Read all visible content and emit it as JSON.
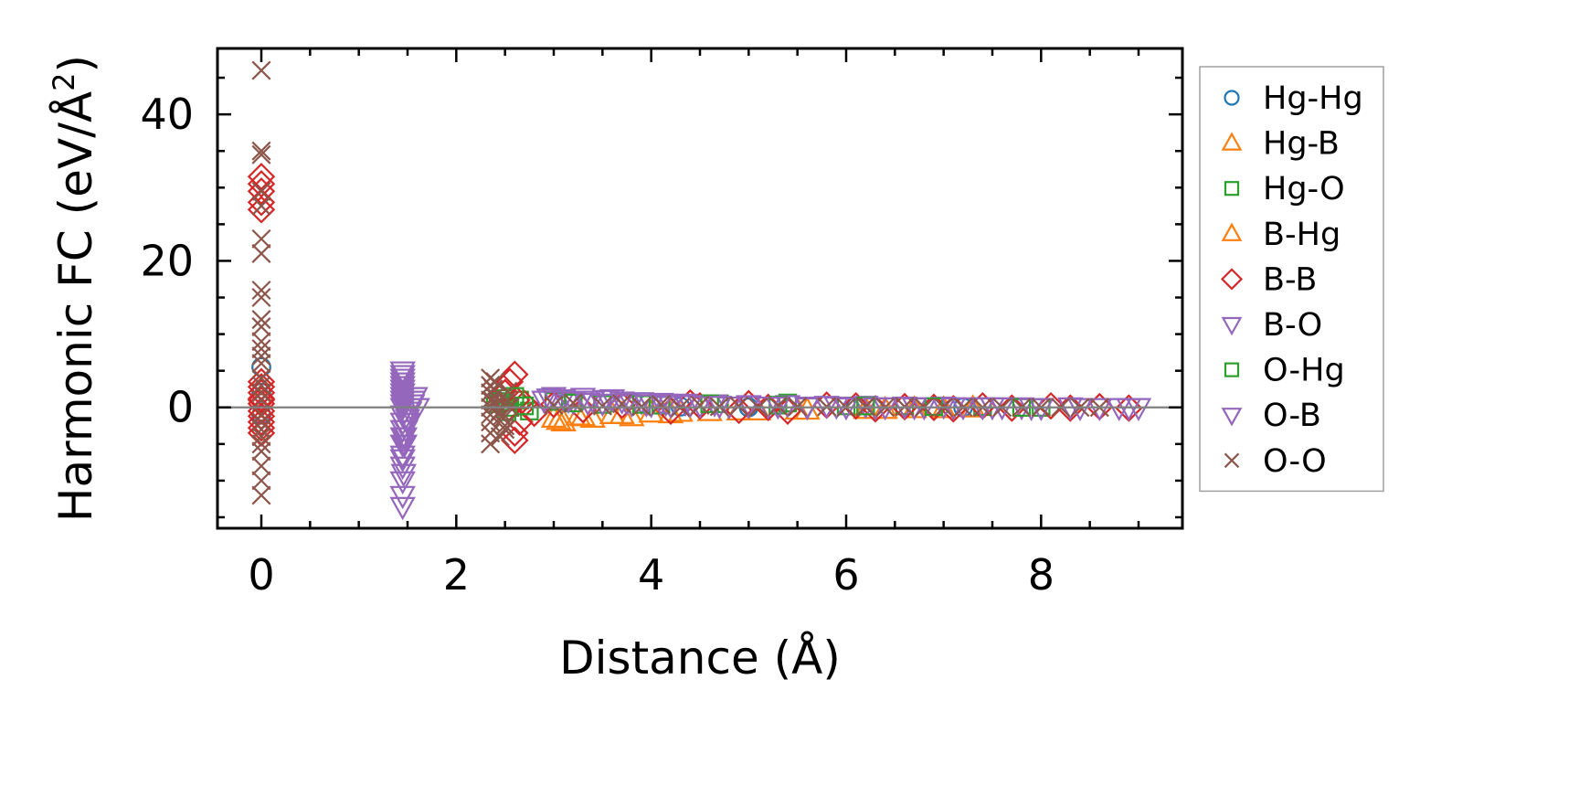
{
  "chart_data": {
    "type": "scatter",
    "title": "",
    "xlabel": "Distance (Å)",
    "ylabel": "Harmonic FC (eV/Å²)",
    "ylabel_parts": {
      "main": "Harmonic FC (eV/Å",
      "sup": "2",
      "close": ")"
    },
    "xlim": [
      -0.45,
      9.45
    ],
    "ylim": [
      -16.5,
      49
    ],
    "xticks": [
      0,
      2,
      4,
      6,
      8
    ],
    "xtick_labels": [
      "0",
      "2",
      "4",
      "6",
      "8"
    ],
    "yticks": [
      0,
      20,
      40
    ],
    "ytick_labels": [
      "0",
      "20",
      "40"
    ],
    "grid": false,
    "reference_line": 0,
    "legend_position": "outside-right",
    "series": [
      {
        "name": "Hg-Hg",
        "marker": "circle",
        "color": "#1f77b4",
        "x": [
          0,
          0,
          0,
          4.3,
          5.0,
          6.1,
          7.2
        ],
        "y": [
          5.5,
          2.0,
          -1.0,
          0.1,
          0.0,
          0.1,
          0.0
        ]
      },
      {
        "name": "Hg-B",
        "marker": "triangle-up",
        "color": "#ff7f0e",
        "x": [
          3.0,
          3.1,
          3.25,
          3.4,
          3.6,
          3.8,
          4.0,
          4.2,
          4.6,
          5.1,
          5.6,
          6.2,
          6.7,
          7.3
        ],
        "y": [
          -1.5,
          -2.0,
          -1.2,
          -1.5,
          -1.0,
          -1.3,
          -0.8,
          -0.9,
          -0.6,
          -0.5,
          -0.4,
          -0.3,
          -0.2,
          -0.1
        ]
      },
      {
        "name": "Hg-O",
        "marker": "square",
        "color": "#2ca02c",
        "x": [
          2.4,
          2.5,
          2.55,
          2.65,
          2.75,
          3.0,
          3.5,
          4.1,
          4.7,
          5.4,
          6.0,
          6.6,
          7.4,
          8.0
        ],
        "y": [
          0.5,
          1.2,
          0.0,
          1.0,
          -0.5,
          0.8,
          0.4,
          0.3,
          0.5,
          0.6,
          0.2,
          0.2,
          0.1,
          0.0
        ]
      },
      {
        "name": "B-Hg",
        "marker": "triangle-up",
        "color": "#ff7f0e",
        "x": [
          3.05,
          3.3,
          3.7,
          4.3,
          4.9,
          5.5,
          6.4,
          7.0
        ],
        "y": [
          -1.8,
          -1.3,
          -1.0,
          -0.7,
          -0.5,
          -0.4,
          -0.3,
          -0.2
        ]
      },
      {
        "name": "B-B",
        "marker": "diamond",
        "color": "#d62728",
        "x": [
          0,
          0,
          0,
          0,
          0,
          0,
          0,
          0,
          0,
          0,
          0,
          0,
          0,
          0,
          0,
          0,
          2.5,
          2.55,
          2.6,
          2.6,
          2.6,
          2.62,
          2.65,
          2.7,
          2.8,
          3.0,
          3.3,
          3.7,
          4.2,
          4.4,
          4.5,
          4.9,
          5.0,
          5.2,
          5.4,
          5.8,
          6.1,
          6.3,
          6.6,
          6.9,
          7.1,
          7.4,
          7.7,
          8.1,
          8.3,
          8.6,
          8.9
        ],
        "y": [
          27,
          28,
          29.5,
          30.5,
          31.5,
          3.5,
          2.8,
          2.0,
          1.2,
          0.5,
          -0.5,
          -1.2,
          -2.0,
          -2.8,
          -3.5,
          1.0,
          2.0,
          3.5,
          4.5,
          -3.5,
          -4.5,
          1.0,
          -2.0,
          0.5,
          -0.8,
          0.4,
          -0.3,
          0.3,
          -0.5,
          0.6,
          0.2,
          -0.4,
          0.5,
          0.0,
          -0.5,
          0.3,
          0.2,
          -0.2,
          0.1,
          0.0,
          -0.2,
          0.2,
          -0.1,
          0.2,
          -0.1,
          0.1,
          -0.1
        ]
      },
      {
        "name": "B-O",
        "marker": "triangle-down",
        "color": "#9467bd",
        "x": [
          1.45,
          1.45,
          1.45,
          1.45,
          1.45,
          1.45,
          1.45,
          1.45,
          1.45,
          1.45,
          1.45,
          1.45,
          1.45,
          1.45,
          1.45,
          1.45,
          1.45,
          1.45,
          1.45,
          1.45,
          1.45,
          1.47,
          1.48,
          1.5,
          1.52,
          1.55,
          1.58,
          1.6,
          2.9,
          3.0,
          3.1,
          3.2,
          3.3,
          3.4,
          3.5,
          3.6,
          3.7,
          3.8,
          3.9,
          4.0,
          4.1,
          4.2,
          4.35,
          4.5,
          4.65,
          4.8,
          5.0,
          5.2,
          5.4,
          5.6,
          5.8,
          6.0,
          6.2,
          6.4,
          6.6,
          6.8,
          7.0,
          7.2,
          7.4,
          7.6,
          7.8,
          8.0,
          8.3,
          8.6,
          8.9,
          9.0
        ],
        "y": [
          5.0,
          4.5,
          4.0,
          3.5,
          3.0,
          2.5,
          2.0,
          1.5,
          1.0,
          0.5,
          0.0,
          -1.0,
          -2.0,
          -3.0,
          -4.0,
          -5.0,
          -6.5,
          -8.0,
          -10.0,
          -12.0,
          -13.5,
          -5.0,
          -3.0,
          -1.5,
          -0.5,
          0.5,
          1.5,
          0.0,
          1.0,
          1.5,
          1.2,
          0.8,
          1.4,
          1.0,
          0.6,
          1.2,
          0.9,
          0.5,
          0.8,
          0.4,
          0.7,
          0.3,
          0.6,
          0.3,
          0.5,
          0.2,
          0.4,
          0.2,
          0.4,
          0.1,
          0.3,
          0.1,
          0.3,
          0.1,
          0.2,
          0.1,
          0.2,
          0.1,
          0.1,
          0.1,
          0.1,
          0.0,
          0.1,
          0.0,
          0.0,
          0.0
        ]
      },
      {
        "name": "O-Hg",
        "marker": "square",
        "color": "#2ca02c",
        "x": [
          2.45,
          2.52,
          2.6,
          2.7,
          3.2,
          3.9,
          4.6,
          5.3,
          6.2,
          6.9,
          7.8
        ],
        "y": [
          0.8,
          -0.6,
          1.5,
          0.2,
          0.6,
          0.4,
          0.5,
          0.3,
          0.2,
          0.1,
          0.0
        ]
      },
      {
        "name": "O-B",
        "marker": "triangle-down",
        "color": "#9467bd",
        "x": [
          1.45,
          1.46,
          1.47,
          1.5,
          1.53,
          1.56,
          2.95,
          3.15,
          3.35,
          3.55,
          3.75,
          3.95,
          4.15,
          4.4,
          4.7,
          5.0,
          5.3,
          5.6,
          5.9,
          6.3,
          6.7,
          7.1,
          7.5,
          7.9,
          8.4,
          8.8
        ],
        "y": [
          -7.0,
          -9.0,
          -4.0,
          -2.0,
          0.0,
          1.0,
          1.3,
          1.0,
          0.7,
          1.1,
          0.7,
          0.5,
          0.6,
          0.4,
          0.3,
          0.3,
          0.2,
          0.2,
          0.2,
          0.1,
          0.1,
          0.1,
          0.1,
          0.0,
          0.0,
          0.0
        ]
      },
      {
        "name": "O-O",
        "marker": "x",
        "color": "#8c564b",
        "x": [
          0,
          0,
          0,
          0,
          0,
          0,
          0,
          0,
          0,
          0,
          0,
          0,
          0,
          0,
          0,
          0,
          0,
          0,
          0,
          0,
          0,
          0,
          0,
          0,
          0,
          0,
          0,
          0,
          2.35,
          2.35,
          2.35,
          2.35,
          2.35,
          2.35,
          2.35,
          2.35,
          2.35,
          2.38,
          2.4,
          2.42,
          2.45,
          2.48,
          2.5,
          2.52,
          2.55,
          2.4,
          2.45,
          2.5,
          2.38,
          2.47,
          2.53,
          3.0,
          3.2,
          3.5,
          3.7,
          3.9,
          4.1,
          4.3,
          4.5,
          4.7,
          4.9,
          5.1,
          5.3,
          5.5,
          5.8,
          6.0,
          6.2,
          6.4,
          6.6,
          6.8,
          7.0,
          7.2,
          7.4,
          7.6,
          7.8,
          8.0,
          8.2,
          8.4,
          8.6
        ],
        "y": [
          46,
          35,
          34.5,
          29.5,
          27.5,
          23,
          21,
          16,
          15,
          12,
          11,
          9,
          8,
          7,
          6,
          4,
          3,
          2,
          1,
          -1,
          -2,
          -3,
          -4,
          -5,
          -6,
          -8,
          -10,
          -12,
          4.0,
          3.0,
          2.0,
          1.0,
          0.0,
          -1.0,
          -2.0,
          -3.5,
          -5.0,
          2.5,
          1.5,
          0.5,
          -0.5,
          -1.5,
          -2.5,
          1.0,
          0.0,
          3.5,
          -4.0,
          -3.0,
          0.8,
          -1.2,
          2.2,
          0.3,
          0.6,
          0.2,
          0.5,
          0.1,
          0.4,
          0.0,
          0.3,
          0.1,
          0.2,
          0.0,
          0.2,
          0.1,
          0.1,
          0.0,
          0.1,
          0.0,
          0.1,
          0.0,
          0.0,
          0.0,
          0.0,
          0.0,
          0.0,
          0.0,
          0.0,
          0.0,
          0.0
        ]
      }
    ]
  }
}
